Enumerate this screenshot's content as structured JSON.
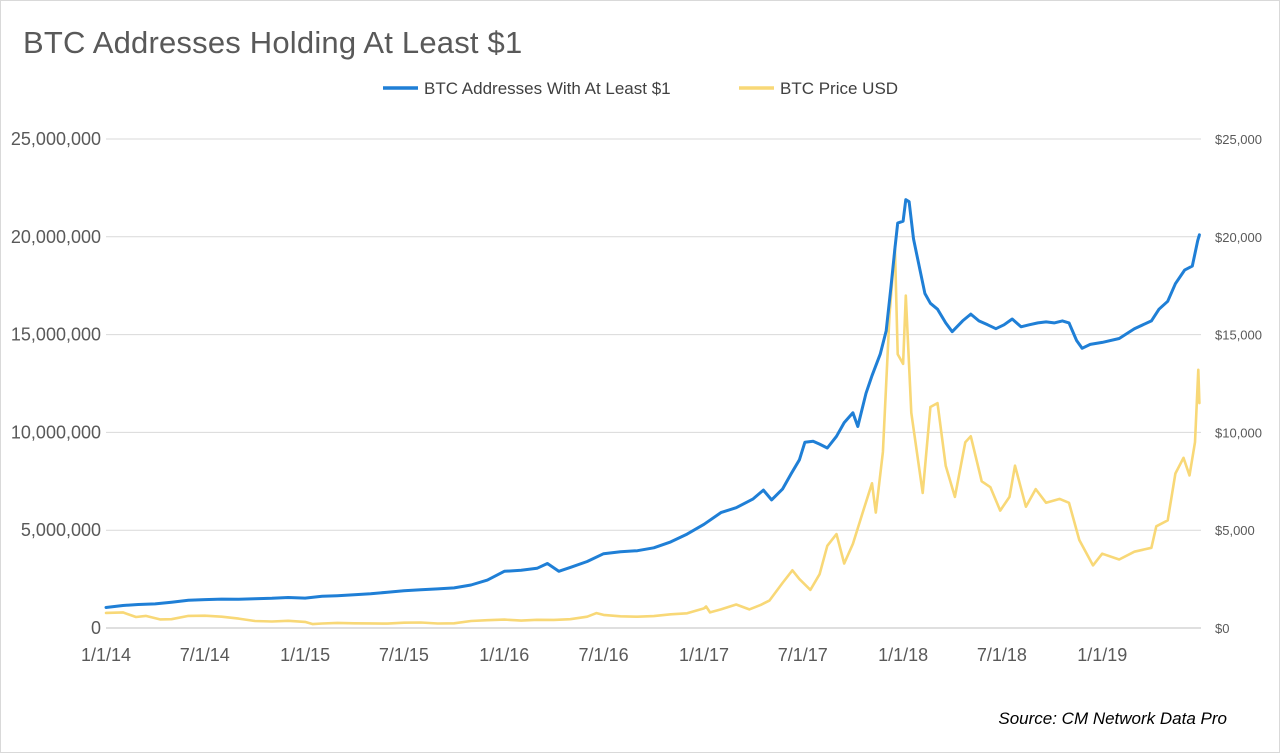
{
  "chart_data": {
    "type": "line",
    "title": "BTC Addresses Holding At Least $1",
    "source": "Source: CM Network Data Pro",
    "x_tick_labels": [
      "1/1/14",
      "7/1/14",
      "1/1/15",
      "7/1/15",
      "1/1/16",
      "7/1/16",
      "1/1/17",
      "7/1/17",
      "1/1/18",
      "7/1/18",
      "1/1/19"
    ],
    "left_axis": {
      "ylim": [
        0,
        25000000
      ],
      "tick_values": [
        0,
        5000000,
        10000000,
        15000000,
        20000000,
        25000000
      ],
      "tick_labels": [
        "0",
        "5,000,000",
        "10,000,000",
        "15,000,000",
        "20,000,000",
        "25,000,000"
      ]
    },
    "right_axis": {
      "ylim": [
        0,
        25000
      ],
      "tick_values": [
        0,
        5000,
        10000,
        15000,
        20000,
        25000
      ],
      "tick_labels": [
        "$0",
        "$5,000",
        "$10,000",
        "$15,000",
        "$20,000",
        "$25,000"
      ]
    },
    "grid": true,
    "legend_position": "top",
    "series": [
      {
        "name": "BTC Addresses With At Least $1",
        "axis": "left",
        "color": "#1f7fd6",
        "points": [
          [
            "2014-01-01",
            1050000
          ],
          [
            "2014-02-01",
            1150000
          ],
          [
            "2014-03-01",
            1200000
          ],
          [
            "2014-04-01",
            1230000
          ],
          [
            "2014-05-01",
            1320000
          ],
          [
            "2014-06-01",
            1420000
          ],
          [
            "2014-07-01",
            1450000
          ],
          [
            "2014-08-01",
            1480000
          ],
          [
            "2014-09-01",
            1470000
          ],
          [
            "2014-10-01",
            1500000
          ],
          [
            "2014-11-01",
            1520000
          ],
          [
            "2014-12-01",
            1560000
          ],
          [
            "2015-01-01",
            1530000
          ],
          [
            "2015-02-01",
            1620000
          ],
          [
            "2015-03-01",
            1650000
          ],
          [
            "2015-04-01",
            1700000
          ],
          [
            "2015-05-01",
            1750000
          ],
          [
            "2015-06-01",
            1830000
          ],
          [
            "2015-07-01",
            1900000
          ],
          [
            "2015-08-01",
            1960000
          ],
          [
            "2015-09-01",
            2000000
          ],
          [
            "2015-10-01",
            2050000
          ],
          [
            "2015-11-01",
            2200000
          ],
          [
            "2015-12-01",
            2450000
          ],
          [
            "2016-01-01",
            2900000
          ],
          [
            "2016-02-01",
            2950000
          ],
          [
            "2016-03-01",
            3050000
          ],
          [
            "2016-03-20",
            3300000
          ],
          [
            "2016-04-10",
            2900000
          ],
          [
            "2016-05-01",
            3100000
          ],
          [
            "2016-06-01",
            3400000
          ],
          [
            "2016-07-01",
            3800000
          ],
          [
            "2016-08-01",
            3900000
          ],
          [
            "2016-09-01",
            3950000
          ],
          [
            "2016-10-01",
            4100000
          ],
          [
            "2016-11-01",
            4400000
          ],
          [
            "2016-12-01",
            4800000
          ],
          [
            "2017-01-01",
            5300000
          ],
          [
            "2017-02-01",
            5900000
          ],
          [
            "2017-03-01",
            6150000
          ],
          [
            "2017-04-01",
            6600000
          ],
          [
            "2017-04-20",
            7050000
          ],
          [
            "2017-05-05",
            6550000
          ],
          [
            "2017-05-25",
            7100000
          ],
          [
            "2017-06-10",
            7900000
          ],
          [
            "2017-06-25",
            8600000
          ],
          [
            "2017-07-05",
            9500000
          ],
          [
            "2017-07-20",
            9550000
          ],
          [
            "2017-08-01",
            9400000
          ],
          [
            "2017-08-15",
            9200000
          ],
          [
            "2017-09-01",
            9800000
          ],
          [
            "2017-09-15",
            10500000
          ],
          [
            "2017-10-01",
            11000000
          ],
          [
            "2017-10-10",
            10300000
          ],
          [
            "2017-10-25",
            12000000
          ],
          [
            "2017-11-05",
            12900000
          ],
          [
            "2017-11-20",
            14000000
          ],
          [
            "2017-12-01",
            15200000
          ],
          [
            "2017-12-10",
            17500000
          ],
          [
            "2017-12-17",
            19400000
          ],
          [
            "2017-12-22",
            20700000
          ],
          [
            "2018-01-01",
            20800000
          ],
          [
            "2018-01-06",
            21900000
          ],
          [
            "2018-01-12",
            21800000
          ],
          [
            "2018-01-20",
            19900000
          ],
          [
            "2018-02-01",
            18300000
          ],
          [
            "2018-02-10",
            17100000
          ],
          [
            "2018-02-20",
            16600000
          ],
          [
            "2018-03-05",
            16300000
          ],
          [
            "2018-03-20",
            15600000
          ],
          [
            "2018-04-01",
            15150000
          ],
          [
            "2018-04-20",
            15700000
          ],
          [
            "2018-05-05",
            16050000
          ],
          [
            "2018-05-20",
            15700000
          ],
          [
            "2018-06-05",
            15500000
          ],
          [
            "2018-06-20",
            15300000
          ],
          [
            "2018-07-05",
            15500000
          ],
          [
            "2018-07-20",
            15800000
          ],
          [
            "2018-08-05",
            15400000
          ],
          [
            "2018-08-20",
            15500000
          ],
          [
            "2018-09-05",
            15600000
          ],
          [
            "2018-09-20",
            15650000
          ],
          [
            "2018-10-05",
            15600000
          ],
          [
            "2018-10-20",
            15700000
          ],
          [
            "2018-11-01",
            15600000
          ],
          [
            "2018-11-15",
            14700000
          ],
          [
            "2018-11-25",
            14300000
          ],
          [
            "2018-12-10",
            14500000
          ],
          [
            "2019-01-01",
            14600000
          ],
          [
            "2019-02-01",
            14800000
          ],
          [
            "2019-03-01",
            15300000
          ],
          [
            "2019-04-01",
            15700000
          ],
          [
            "2019-04-15",
            16300000
          ],
          [
            "2019-05-01",
            16700000
          ],
          [
            "2019-05-15",
            17600000
          ],
          [
            "2019-06-01",
            18300000
          ],
          [
            "2019-06-15",
            18500000
          ],
          [
            "2019-06-25",
            19800000
          ],
          [
            "2019-06-28",
            20100000
          ]
        ]
      },
      {
        "name": "BTC Price USD",
        "axis": "right",
        "color": "#f8d877",
        "points": [
          [
            "2014-01-01",
            770
          ],
          [
            "2014-02-01",
            800
          ],
          [
            "2014-02-25",
            560
          ],
          [
            "2014-03-15",
            620
          ],
          [
            "2014-04-10",
            440
          ],
          [
            "2014-05-01",
            450
          ],
          [
            "2014-06-01",
            620
          ],
          [
            "2014-07-01",
            630
          ],
          [
            "2014-08-01",
            580
          ],
          [
            "2014-09-01",
            480
          ],
          [
            "2014-10-01",
            360
          ],
          [
            "2014-11-01",
            330
          ],
          [
            "2014-12-01",
            370
          ],
          [
            "2015-01-01",
            310
          ],
          [
            "2015-01-15",
            200
          ],
          [
            "2015-02-01",
            230
          ],
          [
            "2015-03-01",
            260
          ],
          [
            "2015-04-01",
            240
          ],
          [
            "2015-05-01",
            235
          ],
          [
            "2015-06-01",
            225
          ],
          [
            "2015-07-01",
            270
          ],
          [
            "2015-08-01",
            280
          ],
          [
            "2015-09-01",
            230
          ],
          [
            "2015-10-01",
            240
          ],
          [
            "2015-11-01",
            360
          ],
          [
            "2015-12-01",
            400
          ],
          [
            "2016-01-01",
            430
          ],
          [
            "2016-02-01",
            380
          ],
          [
            "2016-03-01",
            420
          ],
          [
            "2016-04-01",
            415
          ],
          [
            "2016-05-01",
            450
          ],
          [
            "2016-06-01",
            580
          ],
          [
            "2016-06-18",
            760
          ],
          [
            "2016-07-01",
            670
          ],
          [
            "2016-08-01",
            600
          ],
          [
            "2016-09-01",
            580
          ],
          [
            "2016-10-01",
            610
          ],
          [
            "2016-11-01",
            700
          ],
          [
            "2016-12-01",
            750
          ],
          [
            "2017-01-01",
            1000
          ],
          [
            "2017-01-05",
            1100
          ],
          [
            "2017-01-12",
            800
          ],
          [
            "2017-02-01",
            950
          ],
          [
            "2017-03-01",
            1200
          ],
          [
            "2017-03-25",
            950
          ],
          [
            "2017-04-15",
            1180
          ],
          [
            "2017-05-01",
            1400
          ],
          [
            "2017-05-25",
            2300
          ],
          [
            "2017-06-12",
            2950
          ],
          [
            "2017-06-25",
            2500
          ],
          [
            "2017-07-15",
            1950
          ],
          [
            "2017-08-01",
            2750
          ],
          [
            "2017-08-15",
            4200
          ],
          [
            "2017-09-01",
            4800
          ],
          [
            "2017-09-15",
            3300
          ],
          [
            "2017-10-01",
            4300
          ],
          [
            "2017-10-20",
            6000
          ],
          [
            "2017-11-05",
            7400
          ],
          [
            "2017-11-12",
            5900
          ],
          [
            "2017-11-25",
            9000
          ],
          [
            "2017-12-07",
            16000
          ],
          [
            "2017-12-17",
            19500
          ],
          [
            "2017-12-22",
            14000
          ],
          [
            "2018-01-01",
            13500
          ],
          [
            "2018-01-06",
            17000
          ],
          [
            "2018-01-16",
            11000
          ],
          [
            "2018-02-06",
            6900
          ],
          [
            "2018-02-20",
            11300
          ],
          [
            "2018-03-05",
            11500
          ],
          [
            "2018-03-20",
            8300
          ],
          [
            "2018-04-06",
            6700
          ],
          [
            "2018-04-25",
            9500
          ],
          [
            "2018-05-05",
            9800
          ],
          [
            "2018-05-25",
            7500
          ],
          [
            "2018-06-10",
            7200
          ],
          [
            "2018-06-28",
            6000
          ],
          [
            "2018-07-15",
            6700
          ],
          [
            "2018-07-25",
            8300
          ],
          [
            "2018-08-14",
            6200
          ],
          [
            "2018-09-01",
            7100
          ],
          [
            "2018-09-20",
            6400
          ],
          [
            "2018-10-15",
            6600
          ],
          [
            "2018-11-01",
            6400
          ],
          [
            "2018-11-20",
            4500
          ],
          [
            "2018-12-15",
            3200
          ],
          [
            "2019-01-01",
            3800
          ],
          [
            "2019-02-01",
            3500
          ],
          [
            "2019-03-01",
            3900
          ],
          [
            "2019-04-01",
            4100
          ],
          [
            "2019-04-10",
            5200
          ],
          [
            "2019-05-01",
            5500
          ],
          [
            "2019-05-15",
            7900
          ],
          [
            "2019-05-30",
            8700
          ],
          [
            "2019-06-10",
            7800
          ],
          [
            "2019-06-20",
            9500
          ],
          [
            "2019-06-26",
            13200
          ],
          [
            "2019-06-28",
            11500
          ]
        ]
      }
    ]
  }
}
